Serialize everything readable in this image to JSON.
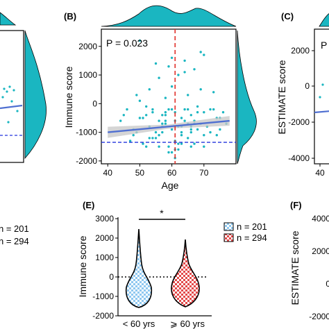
{
  "colors": {
    "teal": "#1AB6C1",
    "trend_line": "#4F6FD1",
    "trend_band": "#C7C7C7",
    "median_line": "#E0302A",
    "h_dashed": "#2233DD",
    "grid_red": "#E03030",
    "violin_blue": "#8FC8F0",
    "violin_red": "#E34A4A"
  },
  "panel_labels": {
    "b": "(B)",
    "c": "(C)",
    "e": "(E)",
    "f": "(F)"
  },
  "panel_a_fragment": {
    "legend": [
      "n = 201",
      "n = 294"
    ]
  },
  "panel_b": {
    "p_text": "P = 0.023",
    "ylabel": "Immune score",
    "xlabel": "Age",
    "xticks": [
      "40",
      "50",
      "60",
      "70"
    ],
    "yticks": [
      "-2000",
      "-1000",
      "0",
      "1000",
      "2000"
    ]
  },
  "panel_c_fragment": {
    "ylabel": "ESTIMATE score",
    "yticks": [
      "2000",
      "0",
      "-2000",
      "-4000"
    ],
    "xtick": "40",
    "p_text": "P"
  },
  "panel_e": {
    "ylabel": "Immune score",
    "yticks": [
      "3000",
      "2000",
      "1000",
      "0",
      "-1000",
      "-2000"
    ],
    "xcats": [
      "< 60 yrs",
      "⩾ 60 yrs"
    ],
    "legend": [
      "n = 201",
      "n = 294"
    ],
    "sig": "*"
  },
  "panel_f_fragment": {
    "ylabel": "ESTIMATE score",
    "yticks": [
      "4000",
      "2000",
      "0",
      "-2000"
    ]
  },
  "chart_data": [
    {
      "panel": "B",
      "type": "scatter",
      "xlabel": "Age",
      "ylabel": "Immune score",
      "xlim": [
        38,
        80
      ],
      "ylim": [
        -2100,
        2600
      ],
      "annotation": "P = 0.023",
      "vline_x": 61,
      "hline_y": -1350,
      "trend": {
        "x": [
          40,
          78
        ],
        "y": [
          -1000,
          -600
        ]
      },
      "x": [
        44,
        46,
        48,
        49,
        50,
        51,
        52,
        53,
        53,
        54,
        55,
        56,
        56,
        57,
        57,
        58,
        58,
        59,
        59,
        60,
        60,
        60,
        61,
        61,
        62,
        62,
        63,
        63,
        64,
        64,
        65,
        65,
        66,
        66,
        67,
        67,
        68,
        68,
        69,
        70,
        70,
        71,
        72,
        73,
        74,
        75,
        76,
        77,
        47,
        50,
        52,
        55,
        57,
        59,
        62,
        64,
        66,
        68,
        71,
        73,
        49,
        51,
        54,
        56,
        58,
        60,
        61,
        63,
        65,
        67,
        69,
        72,
        45,
        48,
        53,
        58,
        63,
        66,
        70,
        74,
        50,
        55,
        60,
        64,
        69,
        56,
        61,
        65,
        52,
        57,
        62,
        67,
        70,
        54,
        59,
        63,
        66,
        75,
        58,
        61
      ],
      "y": [
        -600,
        -200,
        -900,
        300,
        -500,
        -1400,
        -100,
        -800,
        500,
        -300,
        -1200,
        -600,
        900,
        -400,
        -1000,
        200,
        -700,
        -1500,
        1300,
        -200,
        -900,
        600,
        -1300,
        -300,
        -800,
        1000,
        -500,
        -1100,
        1500,
        -200,
        -700,
        300,
        -1000,
        -400,
        1200,
        -600,
        -100,
        -900,
        500,
        -300,
        1700,
        -800,
        -200,
        400,
        -1100,
        -500,
        -300,
        -700,
        -1300,
        100,
        -400,
        -1000,
        -700,
        -200,
        -1400,
        -600,
        -900,
        -300,
        -800,
        -200,
        -1000,
        -500,
        -200,
        -1100,
        -300,
        -1700,
        -600,
        -1000,
        -200,
        -1400,
        -700,
        -1000,
        -400,
        -1100,
        -1200,
        -400,
        -1400,
        -800,
        -1100,
        -500,
        2200,
        1400,
        1600,
        1100,
        1800,
        -1500,
        -1600,
        -1200,
        -1500,
        -800,
        -1600,
        -700,
        -1500,
        -1200,
        -1700,
        -800,
        -1500,
        -900,
        -600,
        -1900
      ]
    },
    {
      "panel": "E",
      "type": "violin",
      "ylabel": "Immune score",
      "ylim": [
        -2000,
        3000
      ],
      "categories": [
        "< 60 yrs",
        "⩾ 60 yrs"
      ],
      "series": [
        {
          "name": "n = 201",
          "median": -500,
          "min": -1700,
          "max": 2100
        },
        {
          "name": "n = 294",
          "median": -600,
          "min": -1600,
          "max": 1600
        }
      ],
      "reference_y": 0,
      "significance": "*"
    }
  ]
}
